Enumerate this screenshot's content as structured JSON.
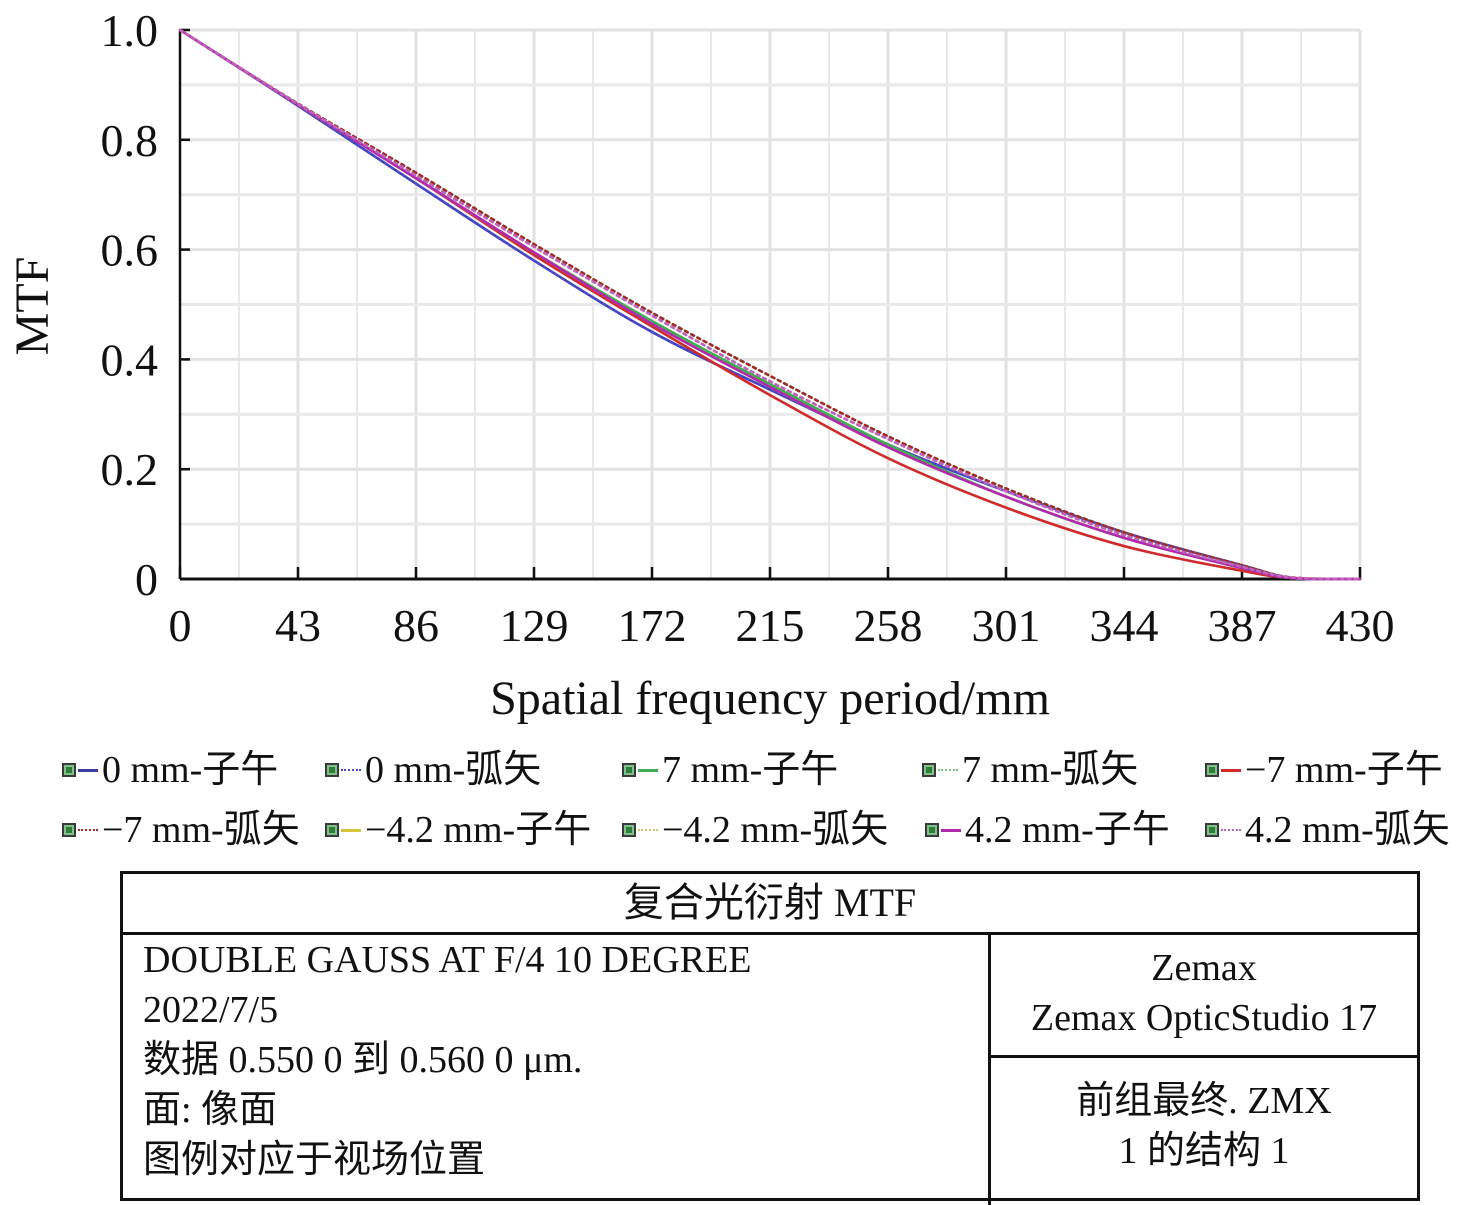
{
  "chart_data": {
    "type": "line",
    "xlabel": "Spatial frequency period/mm",
    "ylabel": "MTF",
    "xlim": [
      0,
      430
    ],
    "ylim": [
      0,
      1.0
    ],
    "x_ticks": [
      "0",
      "43",
      "86",
      "129",
      "172",
      "215",
      "258",
      "301",
      "344",
      "387",
      "430"
    ],
    "y_ticks": [
      "0",
      "0.2",
      "0.4",
      "0.6",
      "0.8",
      "1.0"
    ],
    "grid": true,
    "legend_position": "bottom",
    "x": [
      0,
      43,
      86,
      129,
      172,
      215,
      258,
      301,
      344,
      387,
      405,
      430
    ],
    "series": [
      {
        "name": "0 mm-子午",
        "color": "#3b3ba0",
        "dash": "solid",
        "values": [
          1.0,
          0.862,
          0.72,
          0.58,
          0.45,
          0.345,
          0.245,
          0.16,
          0.085,
          0.025,
          0.002,
          0.0
        ]
      },
      {
        "name": "0 mm-弧矢",
        "color": "#4a4ad0",
        "dash": "dotted",
        "values": [
          1.0,
          0.862,
          0.72,
          0.58,
          0.45,
          0.345,
          0.245,
          0.16,
          0.085,
          0.025,
          0.002,
          0.0
        ]
      },
      {
        "name": "7 mm-子午",
        "color": "#3fae52",
        "dash": "solid",
        "values": [
          1.0,
          0.864,
          0.73,
          0.595,
          0.47,
          0.355,
          0.245,
          0.15,
          0.075,
          0.02,
          0.002,
          0.0
        ]
      },
      {
        "name": "7 mm-弧矢",
        "color": "#7cc47e",
        "dash": "dotted",
        "values": [
          1.0,
          0.866,
          0.74,
          0.61,
          0.485,
          0.37,
          0.26,
          0.165,
          0.085,
          0.025,
          0.003,
          0.0
        ]
      },
      {
        "name": "−7 mm-子午",
        "color": "#d02a2a",
        "dash": "solid",
        "values": [
          1.0,
          0.864,
          0.73,
          0.59,
          0.46,
          0.335,
          0.22,
          0.13,
          0.06,
          0.015,
          0.002,
          0.0
        ]
      },
      {
        "name": "−7 mm-弧矢",
        "color": "#a02a2a",
        "dash": "dotted",
        "values": [
          1.0,
          0.866,
          0.74,
          0.61,
          0.485,
          0.37,
          0.26,
          0.165,
          0.085,
          0.025,
          0.003,
          0.0
        ]
      },
      {
        "name": "−4.2 mm-子午",
        "color": "#d8c23a",
        "dash": "solid",
        "values": [
          1.0,
          0.864,
          0.73,
          0.595,
          0.465,
          0.35,
          0.24,
          0.15,
          0.075,
          0.02,
          0.002,
          0.0
        ]
      },
      {
        "name": "−4.2 mm-弧矢",
        "color": "#cfc86a",
        "dash": "dotted",
        "values": [
          1.0,
          0.865,
          0.735,
          0.605,
          0.48,
          0.36,
          0.255,
          0.16,
          0.08,
          0.022,
          0.003,
          0.0
        ]
      },
      {
        "name": "4.2 mm-子午",
        "color": "#b02ab0",
        "dash": "solid",
        "values": [
          1.0,
          0.864,
          0.73,
          0.595,
          0.465,
          0.35,
          0.24,
          0.15,
          0.075,
          0.02,
          0.002,
          0.0
        ]
      },
      {
        "name": "4.2 mm-弧矢",
        "color": "#c060c0",
        "dash": "dotted",
        "values": [
          1.0,
          0.865,
          0.735,
          0.605,
          0.48,
          0.36,
          0.255,
          0.16,
          0.08,
          0.022,
          0.003,
          0.0
        ]
      }
    ]
  },
  "info": {
    "title": "复合光衍射 MTF",
    "left_lines": [
      "DOUBLE GAUSS AT F/4 10 DEGREE",
      "2022/7/5",
      "数据 0.550 0 到 0.560 0 μm.",
      "面: 像面",
      "图例对应于视场位置"
    ],
    "right_top": [
      "Zemax",
      "Zemax OpticStudio 17"
    ],
    "right_bottom": [
      "前组最终. ZMX",
      "1 的结构 1"
    ]
  }
}
